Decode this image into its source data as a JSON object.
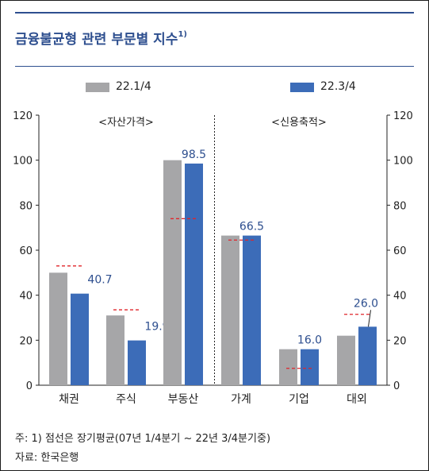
{
  "header": {
    "title": "금융불균형 관련 부문별 지수",
    "title_sup": "1)"
  },
  "legend": [
    {
      "label": "22.1/4",
      "color": "#a6a6a8"
    },
    {
      "label": "22.3/4",
      "color": "#3c6cb8"
    }
  ],
  "notes": {
    "footnote": "주: 1) 점선은 장기평균(07년 1/4분기 ~ 22년 3/4분기중)",
    "source": "자료: 한국은행"
  },
  "chart_data": {
    "type": "bar",
    "title": "금융불균형 관련 부문별 지수",
    "categories": [
      "채권",
      "주식",
      "부동산",
      "가계",
      "기업",
      "대외"
    ],
    "groups": [
      {
        "label": "<자산가격>",
        "categories": [
          "채권",
          "주식",
          "부동산"
        ]
      },
      {
        "label": "<신용축적>",
        "categories": [
          "가계",
          "기업",
          "대외"
        ]
      }
    ],
    "series": [
      {
        "name": "22.1/4",
        "values": [
          50,
          31,
          100,
          66.5,
          16,
          22
        ]
      },
      {
        "name": "22.3/4",
        "values": [
          40.7,
          19.9,
          98.5,
          66.5,
          16.0,
          26.0
        ]
      }
    ],
    "data_labels": [
      "40.7",
      "19.9",
      "98.5",
      "66.5",
      "16.0",
      "26.0"
    ],
    "long_term_average": [
      53,
      33.5,
      74,
      64.5,
      7.5,
      31.5
    ],
    "ylim": [
      0,
      120
    ],
    "yticks": [
      0,
      20,
      40,
      60,
      80,
      100,
      120
    ],
    "y_axis_both_sides": true,
    "grid": false,
    "legend_position": "top",
    "colors": {
      "series1": "#a6a6a8",
      "series2": "#3c6cb8",
      "average": "#e0252a",
      "text": "#222222",
      "label": "#2e4f8f"
    }
  }
}
